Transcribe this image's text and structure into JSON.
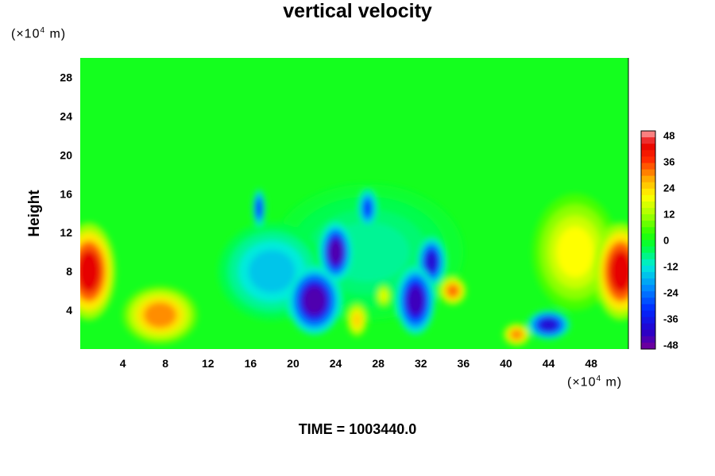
{
  "chart_data": {
    "type": "heatmap",
    "title": "vertical velocity",
    "ylabel": "Height",
    "y_unit_prefix": "(×10",
    "y_unit_exp": "4",
    "y_unit_suffix": " m)",
    "x_unit_prefix": "(×10",
    "x_unit_exp": "4",
    "x_unit_suffix": " m)",
    "footer": "TIME = 1003440.0",
    "xlim": [
      0,
      51.5
    ],
    "ylim": [
      0,
      30
    ],
    "x_ticks": [
      4,
      8,
      12,
      16,
      20,
      24,
      28,
      32,
      36,
      40,
      44,
      48
    ],
    "y_ticks": [
      4,
      8,
      12,
      16,
      20,
      24,
      28
    ],
    "colorbar": {
      "range": [
        -50,
        50
      ],
      "ticks": [
        48,
        36,
        24,
        12,
        0,
        -12,
        -24,
        -36,
        -48
      ]
    },
    "background_value": 0,
    "features": [
      {
        "x": 0.8,
        "y": 8,
        "rx": 2.5,
        "ry": 5,
        "value": 44
      },
      {
        "x": 7.5,
        "y": 3.5,
        "rx": 3.5,
        "ry": 3,
        "value": 30
      },
      {
        "x": 50.8,
        "y": 8,
        "rx": 2.5,
        "ry": 5,
        "value": 44
      },
      {
        "x": 46.5,
        "y": 10,
        "rx": 4,
        "ry": 6,
        "value": 20
      },
      {
        "x": 35,
        "y": 6,
        "rx": 1.3,
        "ry": 1.5,
        "value": 32
      },
      {
        "x": 41,
        "y": 1.5,
        "rx": 1.3,
        "ry": 1.2,
        "value": 30
      },
      {
        "x": 26,
        "y": 3,
        "rx": 1,
        "ry": 1.8,
        "value": 24
      },
      {
        "x": 28.5,
        "y": 5.5,
        "rx": 0.7,
        "ry": 1.2,
        "value": 18
      },
      {
        "x": 22,
        "y": 5,
        "rx": 2.5,
        "ry": 3.5,
        "value": -46
      },
      {
        "x": 24,
        "y": 10,
        "rx": 1.5,
        "ry": 3,
        "value": -46
      },
      {
        "x": 31.5,
        "y": 5,
        "rx": 1.8,
        "ry": 3.5,
        "value": -44
      },
      {
        "x": 33,
        "y": 9,
        "rx": 1.3,
        "ry": 2.5,
        "value": -40
      },
      {
        "x": 44,
        "y": 2.5,
        "rx": 2,
        "ry": 1.5,
        "value": -40
      },
      {
        "x": 16.8,
        "y": 14.5,
        "rx": 0.6,
        "ry": 2,
        "value": -32
      },
      {
        "x": 27,
        "y": 14.5,
        "rx": 0.9,
        "ry": 2,
        "value": -30
      },
      {
        "x": 18,
        "y": 8,
        "rx": 5,
        "ry": 5,
        "value": -16
      },
      {
        "x": 27,
        "y": 10,
        "rx": 9,
        "ry": 7,
        "value": -8
      }
    ]
  }
}
